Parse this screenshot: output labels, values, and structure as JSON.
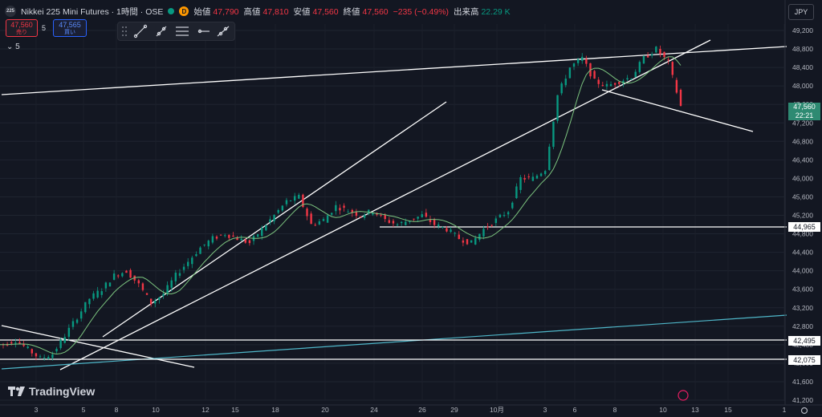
{
  "header": {
    "badge": "225",
    "title": "Nikkei 225 Mini Futures · 1時間 · OSE",
    "dbadge": "D",
    "open_label": "始値",
    "open": "47,790",
    "high_label": "高値",
    "high": "47,810",
    "low_label": "安値",
    "low": "47,560",
    "close_label": "終値",
    "close": "47,560",
    "change": "−235 (−0.49%)",
    "volume_label": "出来高",
    "volume": "22.29 K"
  },
  "trade": {
    "sell_price": "47,560",
    "sell_label": "売り",
    "qty": "5",
    "buy_price": "47,565",
    "buy_label": "買い"
  },
  "collapse_label": "⌄ 5",
  "currency": "JPY",
  "price_axis": [
    "49,200",
    "48,800",
    "48,400",
    "48,000",
    "47,600",
    "47,200",
    "46,800",
    "46,400",
    "46,000",
    "45,600",
    "45,200",
    "44,800",
    "44,400",
    "44,000",
    "43,600",
    "43,200",
    "42,800",
    "42,400",
    "42,000",
    "41,600",
    "41,200"
  ],
  "date_axis": [
    "3",
    "5",
    "8",
    "10",
    "12",
    "15",
    "18",
    "20",
    "24",
    "26",
    "29",
    "10月",
    "3",
    "6",
    "8",
    "10",
    "13",
    "15",
    "1"
  ],
  "price_labels": {
    "current": "47,560",
    "countdown": "22:21",
    "l1": "44,965",
    "l2": "42,495",
    "l3": "42,075"
  },
  "colors": {
    "up": "#089981",
    "down": "#f23645",
    "ma": "#7cc47f",
    "aux": "#2962ff",
    "line": "#ffffff",
    "teal": "#4fb7c9",
    "bg": "#131722"
  },
  "logo": "TradingView",
  "chart_data": {
    "type": "candlestick",
    "x_labels": [
      "3",
      "5",
      "8",
      "10",
      "12",
      "15",
      "18",
      "20",
      "24",
      "26",
      "29",
      "10月",
      "3",
      "6",
      "8",
      "10",
      "13",
      "15",
      "1"
    ],
    "ylim": [
      41100,
      49400
    ],
    "last_price": 47560,
    "horizontal_levels": [
      44965,
      42495,
      42075
    ],
    "closes_approx": [
      42400,
      42500,
      42300,
      42100,
      42200,
      42600,
      43000,
      43400,
      43600,
      43900,
      44000,
      43700,
      43300,
      43500,
      43900,
      44200,
      44500,
      44700,
      44800,
      44700,
      44600,
      44900,
      45200,
      45500,
      45600,
      45000,
      45100,
      45400,
      45300,
      45200,
      45300,
      45100,
      45000,
      45100,
      45200,
      45000,
      44900,
      44700,
      44600,
      44900,
      45100,
      45300,
      46000,
      46000,
      46200,
      47800,
      48400,
      48600,
      48100,
      48000,
      48100,
      48200,
      48600,
      48800,
      48500,
      47560
    ]
  }
}
